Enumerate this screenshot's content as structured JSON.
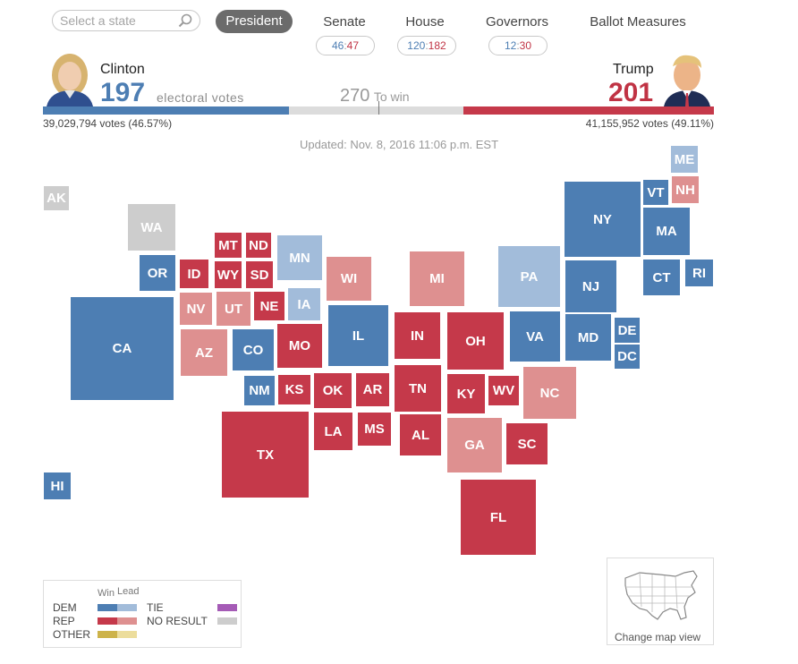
{
  "search": {
    "placeholder": "Select a state"
  },
  "nav": {
    "president": "President",
    "senate": {
      "label": "Senate",
      "dem": "46",
      "rep": "47"
    },
    "house": {
      "label": "House",
      "dem": "120",
      "rep": "182"
    },
    "governors": {
      "label": "Governors",
      "dem": "12",
      "rep": "30"
    },
    "ballot": "Ballot Measures"
  },
  "clinton": {
    "name": "Clinton",
    "ev": "197",
    "ev_label": "electoral votes",
    "popular": "39,029,794 votes (46.57%)"
  },
  "trump": {
    "name": "Trump",
    "ev": "201",
    "popular": "41,155,952 votes (49.11%)"
  },
  "to_win": {
    "value": "270",
    "label": "To win"
  },
  "updated": "Updated: Nov. 8, 2016 11:06 p.m. EST",
  "progress": {
    "clinton_ev": 197,
    "trump_ev": 201,
    "total_ev": 538
  },
  "colors": {
    "dem_win": "#4d7eb3",
    "dem_lead": "#a2bcda",
    "rep_win": "#c5394a",
    "rep_lead": "#de9090",
    "tie": "#a55bb6",
    "no_result": "#cdcdcd",
    "other_win": "#cdb34a",
    "other_lead": "#ecdd9c"
  },
  "states": {
    "ak": "AK",
    "wa": "WA",
    "or": "OR",
    "ca": "CA",
    "hi": "HI",
    "mt": "MT",
    "nd": "ND",
    "id": "ID",
    "wy": "WY",
    "sd": "SD",
    "nv": "NV",
    "ut": "UT",
    "ne": "NE",
    "az": "AZ",
    "co": "CO",
    "nm": "NM",
    "ks": "KS",
    "tx": "TX",
    "mn": "MN",
    "ia": "IA",
    "mo": "MO",
    "ok": "OK",
    "ar": "AR",
    "la": "LA",
    "ms": "MS",
    "wi": "WI",
    "il": "IL",
    "mi": "MI",
    "in": "IN",
    "tn": "TN",
    "al": "AL",
    "oh": "OH",
    "ky": "KY",
    "wv": "WV",
    "ga": "GA",
    "fl": "FL",
    "sc": "SC",
    "nc": "NC",
    "va": "VA",
    "pa": "PA",
    "md": "MD",
    "de": "DE",
    "dc": "DC",
    "nj": "NJ",
    "ny": "NY",
    "ct": "CT",
    "ri": "RI",
    "ma": "MA",
    "vt": "VT",
    "nh": "NH",
    "me": "ME"
  },
  "legend": {
    "win": "Win",
    "lead": "Lead",
    "dem": "DEM",
    "rep": "REP",
    "other": "OTHER",
    "tie": "TIE",
    "no_result": "NO RESULT"
  },
  "map_view": {
    "label": "Change map view"
  }
}
